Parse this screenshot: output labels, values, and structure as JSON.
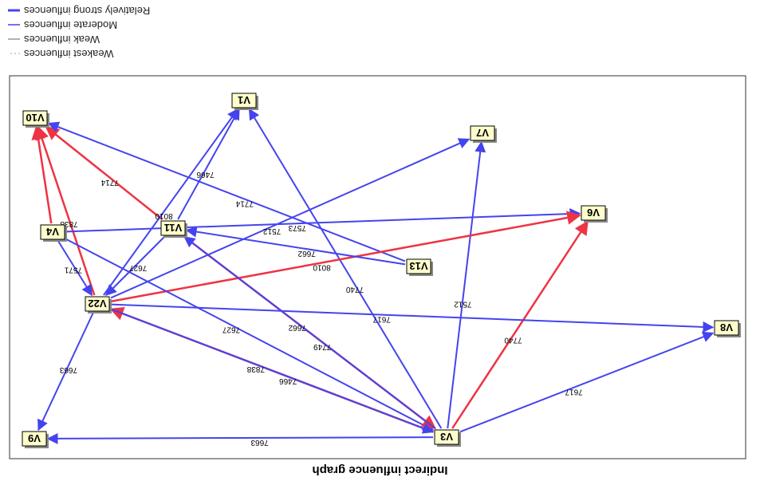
{
  "title": "Indirect influence graph",
  "legend": [
    {
      "label": "Relatively strong influences",
      "style": "strong"
    },
    {
      "label": "Moderate influences",
      "style": "moderate"
    },
    {
      "label": "Weak influences",
      "style": "weak"
    },
    {
      "label": "Weakest influences",
      "style": "weakest"
    }
  ],
  "colors": {
    "strong": "#ee3344",
    "moderate": "#4444ee",
    "weak": "#666666",
    "weakest": "#aaaaaa"
  },
  "nodes": [
    "V10",
    "V1",
    "V7",
    "V6",
    "V4",
    "V11",
    "V13",
    "V22",
    "V8",
    "V9",
    "V3"
  ],
  "edges": [
    {
      "from": "V22",
      "to": "V10",
      "label": "7838",
      "type": "strong"
    },
    {
      "from": "V4",
      "to": "V10",
      "label": "",
      "type": "strong"
    },
    {
      "from": "V11",
      "to": "V10",
      "label": "7714",
      "type": "strong"
    },
    {
      "from": "V13",
      "to": "V10",
      "label": "7714",
      "type": "moderate"
    },
    {
      "from": "V22",
      "to": "V1",
      "label": "8010",
      "type": "moderate"
    },
    {
      "from": "V11",
      "to": "V1",
      "label": "7466",
      "type": "moderate"
    },
    {
      "from": "V3",
      "to": "V1",
      "label": "7740",
      "type": "moderate"
    },
    {
      "from": "V22",
      "to": "V7",
      "label": "7512",
      "type": "moderate"
    },
    {
      "from": "V3",
      "to": "V7",
      "label": "7512",
      "type": "moderate"
    },
    {
      "from": "V4",
      "to": "V6",
      "label": "7573",
      "type": "moderate"
    },
    {
      "from": "V22",
      "to": "V6",
      "label": "8010",
      "type": "strong"
    },
    {
      "from": "V3",
      "to": "V6",
      "label": "7740",
      "type": "strong"
    },
    {
      "from": "V4",
      "to": "V22",
      "label": "7571",
      "type": "moderate"
    },
    {
      "from": "V11",
      "to": "V22",
      "label": "7627",
      "type": "moderate"
    },
    {
      "from": "V3",
      "to": "V22",
      "label": "7466",
      "type": "strong"
    },
    {
      "from": "V4",
      "to": "V3",
      "label": "7627",
      "type": "moderate"
    },
    {
      "from": "V11",
      "to": "V3",
      "label": "7662",
      "type": "strong"
    },
    {
      "from": "V3",
      "to": "V11",
      "label": "7749",
      "type": "moderate"
    },
    {
      "from": "V22",
      "to": "V3",
      "label": "7838",
      "type": "moderate"
    },
    {
      "from": "V22",
      "to": "V8",
      "label": "7617",
      "type": "moderate"
    },
    {
      "from": "V3",
      "to": "V8",
      "label": "7617",
      "type": "moderate"
    },
    {
      "from": "V22",
      "to": "V9",
      "label": "7663",
      "type": "moderate"
    },
    {
      "from": "V3",
      "to": "V9",
      "label": "7663",
      "type": "moderate"
    },
    {
      "from": "V13",
      "to": "V11",
      "label": "7662",
      "type": "moderate"
    }
  ]
}
